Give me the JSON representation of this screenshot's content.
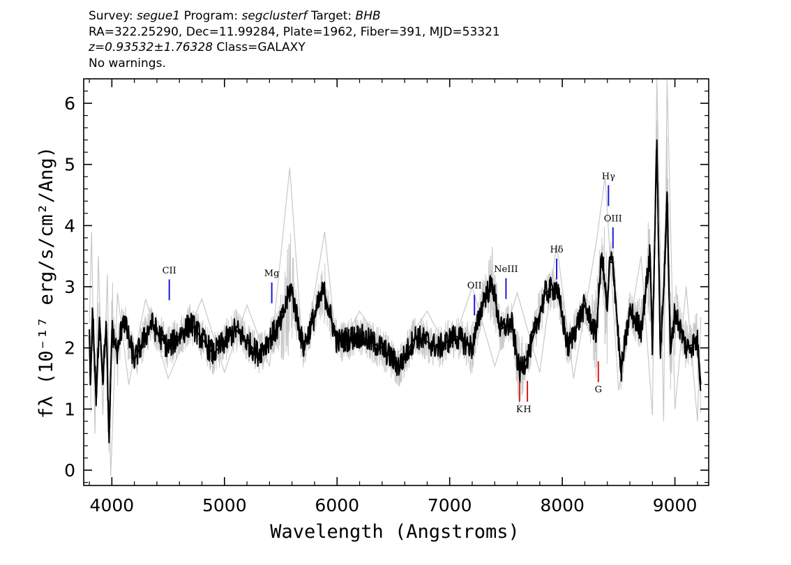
{
  "header": {
    "survey_label": "Survey:",
    "survey": "segue1",
    "program_label": "Program:",
    "program": "segclusterf",
    "target_label": "Target:",
    "target": "BHB",
    "line2": "RA=322.25290, Dec=11.99284, Plate=1962, Fiber=391, MJD=53321",
    "redshift": "z=0.93532±1.76328",
    "class_text": "Class=GALAXY",
    "warnings": "No warnings."
  },
  "chart_data": {
    "type": "line",
    "xlabel": "Wavelength (Angstroms)",
    "ylabel": "fλ (10⁻¹⁷ erg/s/cm²/Ang)",
    "xlim": [
      3750,
      9300
    ],
    "ylim": [
      -0.25,
      6.4
    ],
    "x_ticks": [
      4000,
      5000,
      6000,
      7000,
      8000,
      9000
    ],
    "y_ticks": [
      0,
      1,
      2,
      3,
      4,
      5,
      6
    ],
    "grid": false,
    "series": [
      {
        "role": "error envelope (light gray)",
        "color": "#c8c8c8",
        "points": [
          [
            3800,
            2.4
          ],
          [
            3820,
            3.9
          ],
          [
            3850,
            0.6
          ],
          [
            3880,
            3.5
          ],
          [
            3920,
            0.9
          ],
          [
            3960,
            3.2
          ],
          [
            3990,
            -0.1
          ],
          [
            4050,
            2.9
          ],
          [
            4150,
            1.4
          ],
          [
            4300,
            2.8
          ],
          [
            4500,
            1.5
          ],
          [
            4800,
            2.8
          ],
          [
            5000,
            1.6
          ],
          [
            5200,
            2.7
          ],
          [
            5400,
            1.7
          ],
          [
            5580,
            4.95
          ],
          [
            5700,
            1.8
          ],
          [
            5890,
            3.9
          ],
          [
            6000,
            1.9
          ],
          [
            6200,
            2.6
          ],
          [
            6500,
            1.8
          ],
          [
            6800,
            2.6
          ],
          [
            7000,
            1.9
          ],
          [
            7200,
            3.0
          ],
          [
            7400,
            1.7
          ],
          [
            7600,
            2.9
          ],
          [
            7800,
            1.6
          ],
          [
            7950,
            3.7
          ],
          [
            8100,
            1.5
          ],
          [
            8300,
            3.7
          ],
          [
            8380,
            4.8
          ],
          [
            8500,
            1.3
          ],
          [
            8700,
            3.5
          ],
          [
            8800,
            0.9
          ],
          [
            8840,
            6.4
          ],
          [
            8900,
            0.8
          ],
          [
            8930,
            6.4
          ],
          [
            9000,
            1.0
          ],
          [
            9100,
            3.0
          ],
          [
            9200,
            0.8
          ],
          [
            9230,
            2.5
          ]
        ]
      },
      {
        "role": "flux (black)",
        "color": "#000000",
        "points": [
          [
            3800,
            2.2
          ],
          [
            3810,
            1.4
          ],
          [
            3830,
            2.6
          ],
          [
            3860,
            1.1
          ],
          [
            3890,
            2.5
          ],
          [
            3920,
            1.5
          ],
          [
            3950,
            2.4
          ],
          [
            3975,
            0.45
          ],
          [
            4000,
            2.3
          ],
          [
            4050,
            1.9
          ],
          [
            4100,
            2.5
          ],
          [
            4200,
            1.8
          ],
          [
            4350,
            2.4
          ],
          [
            4500,
            2.0
          ],
          [
            4700,
            2.4
          ],
          [
            4900,
            1.9
          ],
          [
            5100,
            2.3
          ],
          [
            5300,
            1.9
          ],
          [
            5500,
            2.4
          ],
          [
            5590,
            3.0
          ],
          [
            5700,
            2.0
          ],
          [
            5880,
            2.95
          ],
          [
            6000,
            2.1
          ],
          [
            6200,
            2.2
          ],
          [
            6400,
            2.0
          ],
          [
            6550,
            1.7
          ],
          [
            6700,
            2.2
          ],
          [
            6900,
            2.0
          ],
          [
            7050,
            2.2
          ],
          [
            7200,
            2.0
          ],
          [
            7300,
            2.8
          ],
          [
            7380,
            3.05
          ],
          [
            7450,
            2.3
          ],
          [
            7550,
            2.4
          ],
          [
            7620,
            1.6
          ],
          [
            7700,
            1.9
          ],
          [
            7850,
            2.9
          ],
          [
            7950,
            3.0
          ],
          [
            8050,
            2.0
          ],
          [
            8200,
            2.7
          ],
          [
            8300,
            2.2
          ],
          [
            8350,
            3.55
          ],
          [
            8400,
            2.6
          ],
          [
            8420,
            3.4
          ],
          [
            8450,
            3.4
          ],
          [
            8520,
            1.6
          ],
          [
            8600,
            2.6
          ],
          [
            8700,
            2.3
          ],
          [
            8780,
            3.55
          ],
          [
            8800,
            2.0
          ],
          [
            8840,
            5.4
          ],
          [
            8870,
            1.9
          ],
          [
            8900,
            2.9
          ],
          [
            8930,
            4.55
          ],
          [
            8960,
            1.9
          ],
          [
            9000,
            2.6
          ],
          [
            9100,
            2.0
          ],
          [
            9200,
            2.1
          ],
          [
            9230,
            1.4
          ]
        ]
      }
    ],
    "line_markers": [
      {
        "label": "CII",
        "wavelength": 4510,
        "y_from": 2.78,
        "y_to": 3.12,
        "color": "#1a1adc",
        "label_y": 3.22,
        "position": "above"
      },
      {
        "label": "Mg",
        "wavelength": 5420,
        "y_from": 2.73,
        "y_to": 3.07,
        "color": "#1a1adc",
        "label_y": 3.17,
        "position": "above"
      },
      {
        "label": "OII",
        "wavelength": 7220,
        "y_from": 2.53,
        "y_to": 2.87,
        "color": "#1a1adc",
        "label_y": 2.97,
        "position": "above"
      },
      {
        "label": "NeIII",
        "wavelength": 7500,
        "y_from": 2.8,
        "y_to": 3.14,
        "color": "#1a1adc",
        "label_y": 3.24,
        "position": "above"
      },
      {
        "label": "Hδ",
        "wavelength": 7950,
        "y_from": 3.12,
        "y_to": 3.46,
        "color": "#1a1adc",
        "label_y": 3.56,
        "position": "above"
      },
      {
        "label": "Hγ",
        "wavelength": 8410,
        "y_from": 4.32,
        "y_to": 4.66,
        "color": "#1a1adc",
        "label_y": 4.76,
        "position": "above"
      },
      {
        "label": "OIII",
        "wavelength": 8450,
        "y_from": 3.63,
        "y_to": 3.97,
        "color": "#1a1adc",
        "label_y": 4.07,
        "position": "above"
      },
      {
        "label": "K",
        "wavelength": 7620,
        "y_from": 1.12,
        "y_to": 1.46,
        "color": "#d21e1e",
        "label_y": 0.95,
        "position": "below"
      },
      {
        "label": "H",
        "wavelength": 7690,
        "y_from": 1.12,
        "y_to": 1.46,
        "color": "#d21e1e",
        "label_y": 0.95,
        "position": "below"
      },
      {
        "label": "G",
        "wavelength": 8320,
        "y_from": 1.44,
        "y_to": 1.78,
        "color": "#d21e1e",
        "label_y": 1.27,
        "position": "below"
      }
    ]
  }
}
